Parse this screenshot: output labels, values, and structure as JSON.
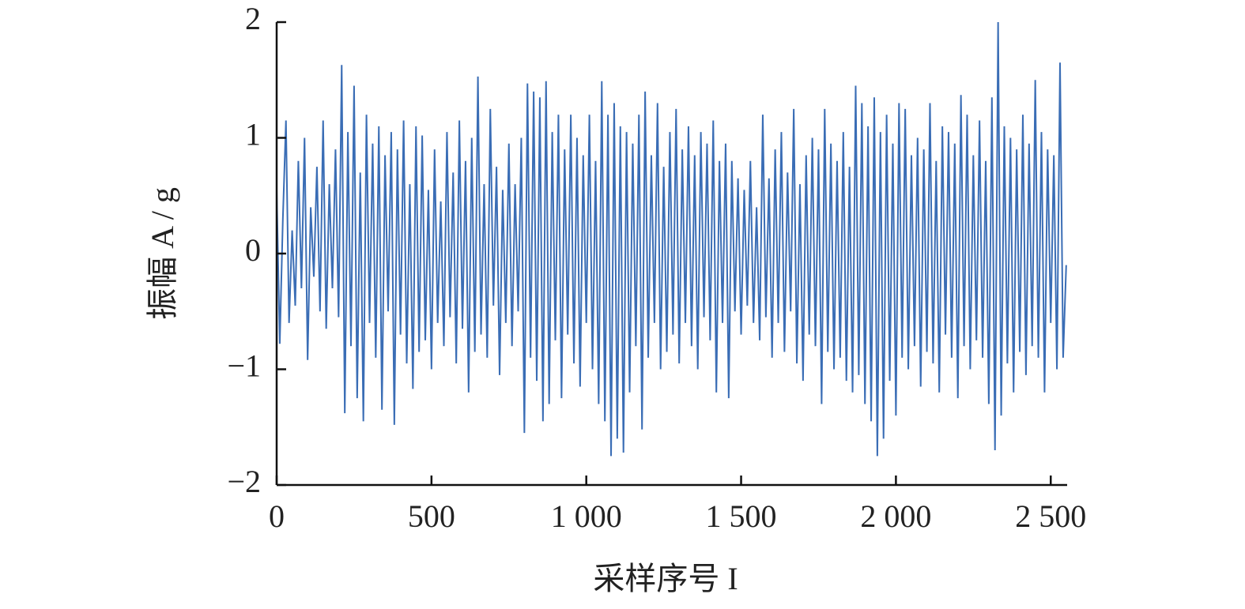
{
  "chart_data": {
    "type": "line",
    "xlabel": "采样序号 I",
    "ylabel": "振幅 A / g",
    "xlim": [
      0,
      2553
    ],
    "ylim": [
      -2,
      2
    ],
    "xticks": [
      0,
      500,
      {
        "value": 1000,
        "label": "1 000"
      },
      {
        "value": 1500,
        "label": "1 500"
      },
      {
        "value": 2000,
        "label": "2 000"
      },
      {
        "value": 2500,
        "label": "2 500"
      }
    ],
    "yticks": [
      {
        "value": -2,
        "label": "−2"
      },
      {
        "value": -1,
        "label": "−1"
      },
      0,
      1,
      2
    ],
    "x": [
      0,
      10,
      20,
      30,
      40,
      50,
      60,
      70,
      80,
      90,
      100,
      110,
      120,
      130,
      140,
      150,
      160,
      170,
      180,
      190,
      200,
      210,
      220,
      230,
      240,
      250,
      260,
      270,
      280,
      290,
      300,
      310,
      320,
      330,
      340,
      350,
      360,
      370,
      380,
      390,
      400,
      410,
      420,
      430,
      440,
      450,
      460,
      470,
      480,
      490,
      500,
      510,
      520,
      530,
      540,
      550,
      560,
      570,
      580,
      590,
      600,
      610,
      620,
      630,
      640,
      650,
      660,
      670,
      680,
      690,
      700,
      710,
      720,
      730,
      740,
      750,
      760,
      770,
      780,
      790,
      800,
      810,
      820,
      830,
      840,
      850,
      860,
      870,
      880,
      890,
      900,
      910,
      920,
      930,
      940,
      950,
      960,
      970,
      980,
      990,
      1000,
      1010,
      1020,
      1030,
      1040,
      1050,
      1060,
      1070,
      1080,
      1090,
      1100,
      1110,
      1120,
      1130,
      1140,
      1150,
      1160,
      1170,
      1180,
      1190,
      1200,
      1210,
      1220,
      1230,
      1240,
      1250,
      1260,
      1270,
      1280,
      1290,
      1300,
      1310,
      1320,
      1330,
      1340,
      1350,
      1360,
      1370,
      1380,
      1390,
      1400,
      1410,
      1420,
      1430,
      1440,
      1450,
      1460,
      1470,
      1480,
      1490,
      1500,
      1510,
      1520,
      1530,
      1540,
      1550,
      1560,
      1570,
      1580,
      1590,
      1600,
      1610,
      1620,
      1630,
      1640,
      1650,
      1660,
      1670,
      1680,
      1690,
      1700,
      1710,
      1720,
      1730,
      1740,
      1750,
      1760,
      1770,
      1780,
      1790,
      1800,
      1810,
      1820,
      1830,
      1840,
      1850,
      1860,
      1870,
      1880,
      1890,
      1900,
      1910,
      1920,
      1930,
      1940,
      1950,
      1960,
      1970,
      1980,
      1990,
      2000,
      2010,
      2020,
      2030,
      2040,
      2050,
      2060,
      2070,
      2080,
      2090,
      2100,
      2110,
      2120,
      2130,
      2140,
      2150,
      2160,
      2170,
      2180,
      2190,
      2200,
      2210,
      2220,
      2230,
      2240,
      2250,
      2260,
      2270,
      2280,
      2290,
      2300,
      2310,
      2320,
      2330,
      2340,
      2350,
      2360,
      2370,
      2380,
      2390,
      2400,
      2410,
      2420,
      2430,
      2440,
      2450,
      2460,
      2470,
      2480,
      2490,
      2500,
      2510,
      2520,
      2530,
      2540,
      2550
    ],
    "series": [
      {
        "color": "#3a6db5",
        "values": [
          0.55,
          -0.78,
          0.3,
          1.15,
          -0.6,
          0.2,
          -0.45,
          0.8,
          -0.3,
          1.0,
          -0.92,
          0.4,
          -0.2,
          0.75,
          -0.5,
          1.15,
          -0.65,
          0.6,
          -0.3,
          0.9,
          -0.55,
          1.63,
          -1.38,
          1.05,
          -0.8,
          1.45,
          -1.25,
          0.7,
          -1.45,
          1.2,
          -0.6,
          0.95,
          -0.9,
          1.1,
          -1.35,
          0.85,
          -0.5,
          1.05,
          -1.48,
          0.9,
          -0.7,
          1.15,
          -0.95,
          0.6,
          -1.17,
          1.1,
          -0.85,
          1.02,
          -0.75,
          0.55,
          -1.0,
          0.9,
          -0.6,
          0.45,
          -0.8,
          1.05,
          -0.55,
          0.7,
          -0.95,
          1.15,
          -0.65,
          0.8,
          -1.2,
          1.0,
          -0.85,
          1.53,
          -0.7,
          0.6,
          -0.9,
          1.25,
          -0.45,
          0.75,
          -1.05,
          0.55,
          -0.6,
          0.95,
          -0.8,
          0.6,
          -0.5,
          1.0,
          -1.55,
          1.47,
          -0.9,
          1.4,
          -1.1,
          1.35,
          -1.45,
          1.49,
          -1.3,
          1.05,
          -0.75,
          1.2,
          -1.25,
          0.9,
          -0.7,
          1.2,
          -0.95,
          1.0,
          -1.15,
          0.85,
          -0.6,
          1.2,
          -1.0,
          0.8,
          -1.3,
          1.49,
          -1.45,
          1.2,
          -1.75,
          1.3,
          -1.6,
          1.1,
          -1.72,
          1.05,
          -1.2,
          0.95,
          -0.8,
          1.2,
          -1.52,
          1.4,
          -0.9,
          0.85,
          -0.6,
          1.3,
          -1.0,
          0.75,
          -0.85,
          1.05,
          -0.7,
          1.25,
          -0.95,
          0.9,
          -0.6,
          1.1,
          -0.8,
          0.85,
          -1.0,
          1.05,
          -0.55,
          0.95,
          -0.75,
          1.15,
          -1.2,
          0.8,
          -0.6,
          0.95,
          -1.25,
          0.8,
          -0.5,
          0.65,
          -0.7,
          0.55,
          -0.45,
          0.8,
          -0.6,
          0.4,
          -0.75,
          1.2,
          -0.55,
          0.65,
          -0.9,
          0.9,
          -0.6,
          1.05,
          -0.85,
          0.7,
          -0.5,
          1.25,
          -0.95,
          0.6,
          -1.1,
          0.85,
          -0.7,
          1.0,
          -0.8,
          0.9,
          -1.3,
          1.25,
          -0.85,
          0.95,
          -1.0,
          0.8,
          -0.9,
          1.05,
          -1.1,
          0.75,
          -1.2,
          1.45,
          -1.05,
          1.3,
          -1.3,
          1.1,
          -1.45,
          1.35,
          -1.75,
          1.05,
          -1.6,
          1.2,
          -1.1,
          0.95,
          -1.4,
          1.3,
          -0.9,
          1.25,
          -1.0,
          0.85,
          -0.8,
          1.0,
          -1.15,
          0.9,
          -0.85,
          1.3,
          -0.95,
          0.8,
          -1.2,
          1.1,
          -0.7,
          1.05,
          -0.9,
          0.95,
          -1.25,
          1.37,
          -0.8,
          1.2,
          -1.0,
          0.85,
          -0.75,
          1.15,
          -0.9,
          0.8,
          -1.3,
          1.35,
          -1.7,
          2.0,
          -1.4,
          1.1,
          -0.95,
          1.0,
          -1.2,
          0.9,
          -0.85,
          1.2,
          -1.05,
          0.95,
          -0.8,
          1.5,
          -0.9,
          1.05,
          -1.2,
          0.9,
          -0.6,
          0.85,
          -1.0,
          1.65,
          -0.9,
          -0.1
        ]
      }
    ]
  }
}
